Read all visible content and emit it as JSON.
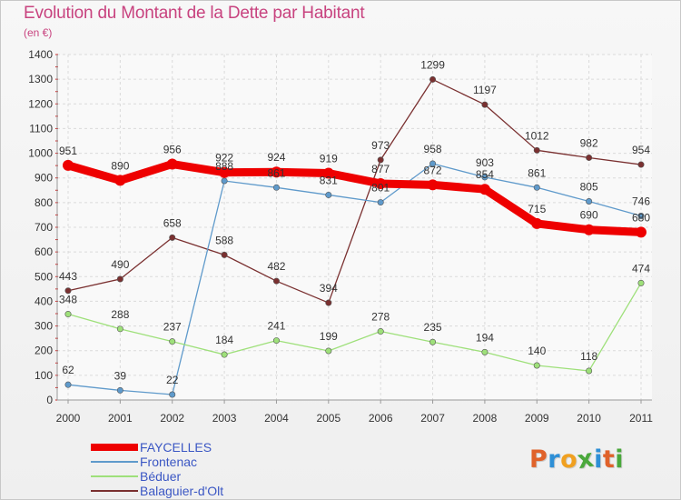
{
  "chart_data": {
    "type": "line",
    "title": "Evolution du Montant de la Dette par Habitant",
    "subtitle": "(en €)",
    "xlabel": "",
    "ylabel": "",
    "ylim": [
      0,
      1400
    ],
    "yticks": [
      0,
      100,
      200,
      300,
      400,
      500,
      600,
      700,
      800,
      900,
      1000,
      1100,
      1200,
      1300,
      1400
    ],
    "grid": true,
    "legend_position": "bottom-left",
    "x": [
      "2000",
      "2001",
      "2002",
      "2003",
      "2004",
      "2005",
      "2006",
      "2007",
      "2008",
      "2009",
      "2010",
      "2011"
    ],
    "series": [
      {
        "name": "FAYCELLES",
        "color": "#ee0000",
        "values": [
          951,
          890,
          956,
          922,
          924,
          919,
          877,
          872,
          854,
          715,
          690,
          680
        ]
      },
      {
        "name": "Frontenac",
        "color": "#5f9acb",
        "values": [
          62,
          39,
          22,
          888,
          861,
          831,
          801,
          958,
          903,
          861,
          805,
          746
        ]
      },
      {
        "name": "Béduer",
        "color": "#9ee07a",
        "values": [
          348,
          288,
          237,
          184,
          241,
          199,
          278,
          235,
          194,
          140,
          118,
          474
        ]
      },
      {
        "name": "Balaguier-d'Olt",
        "color": "#7a3030",
        "values": [
          443,
          490,
          658,
          588,
          482,
          394,
          973,
          1299,
          1197,
          1012,
          982,
          954
        ]
      }
    ]
  },
  "logo": {
    "text": "Proxiti"
  }
}
